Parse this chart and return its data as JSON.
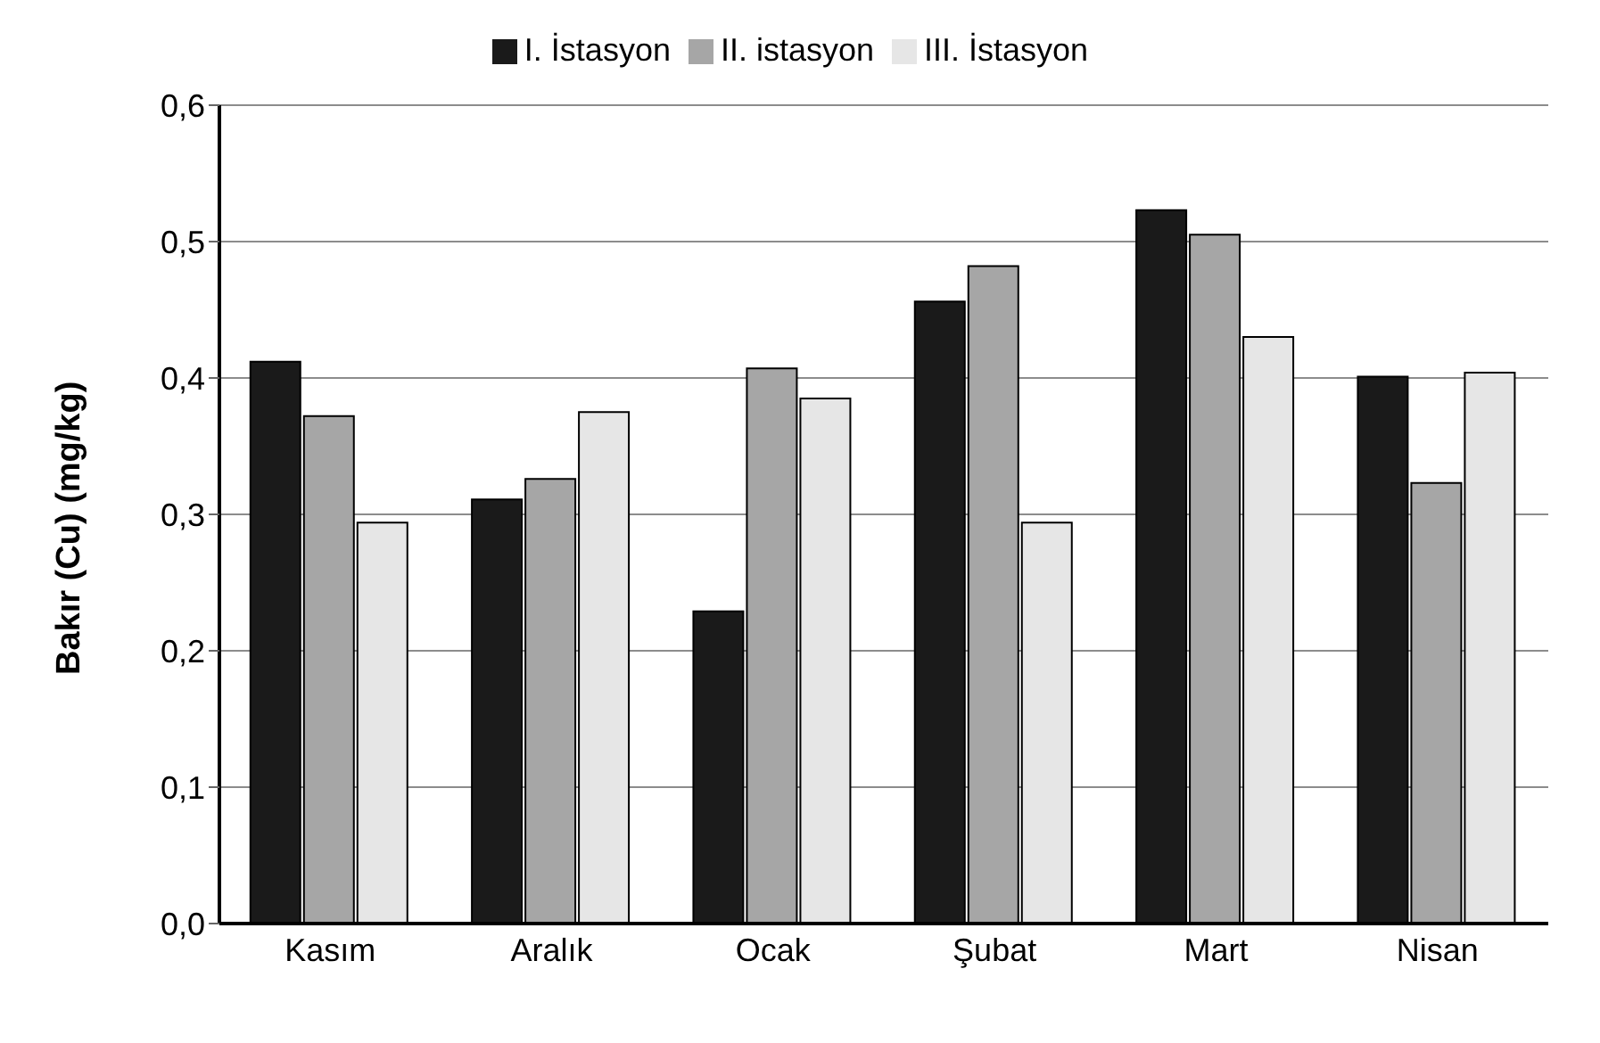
{
  "chart_data": {
    "type": "bar",
    "ylabel": "Bakır (Cu) (mg/kg)",
    "categories": [
      "Kasım",
      "Aralık",
      "Ocak",
      "Şubat",
      "Mart",
      "Nisan"
    ],
    "series": [
      {
        "name": "I. İstasyon",
        "color": "#1a1a1a",
        "values": [
          0.412,
          0.311,
          0.229,
          0.456,
          0.523,
          0.401
        ]
      },
      {
        "name": "II. istasyon",
        "color": "#a6a6a6",
        "values": [
          0.372,
          0.326,
          0.407,
          0.482,
          0.505,
          0.323
        ]
      },
      {
        "name": "III. İstasyon",
        "color": "#e6e6e6",
        "values": [
          0.294,
          0.375,
          0.385,
          0.294,
          0.43,
          0.404
        ]
      }
    ],
    "ylim": [
      0,
      0.6
    ],
    "yticks": [
      {
        "value": 0,
        "label": "0,0"
      },
      {
        "value": 0.1,
        "label": "0,1"
      },
      {
        "value": 0.2,
        "label": "0,2"
      },
      {
        "value": 0.3,
        "label": "0,3"
      },
      {
        "value": 0.4,
        "label": "0,4"
      },
      {
        "value": 0.5,
        "label": "0,5"
      },
      {
        "value": 0.6,
        "label": "0,6"
      }
    ],
    "grid": "y",
    "legend": "top"
  }
}
